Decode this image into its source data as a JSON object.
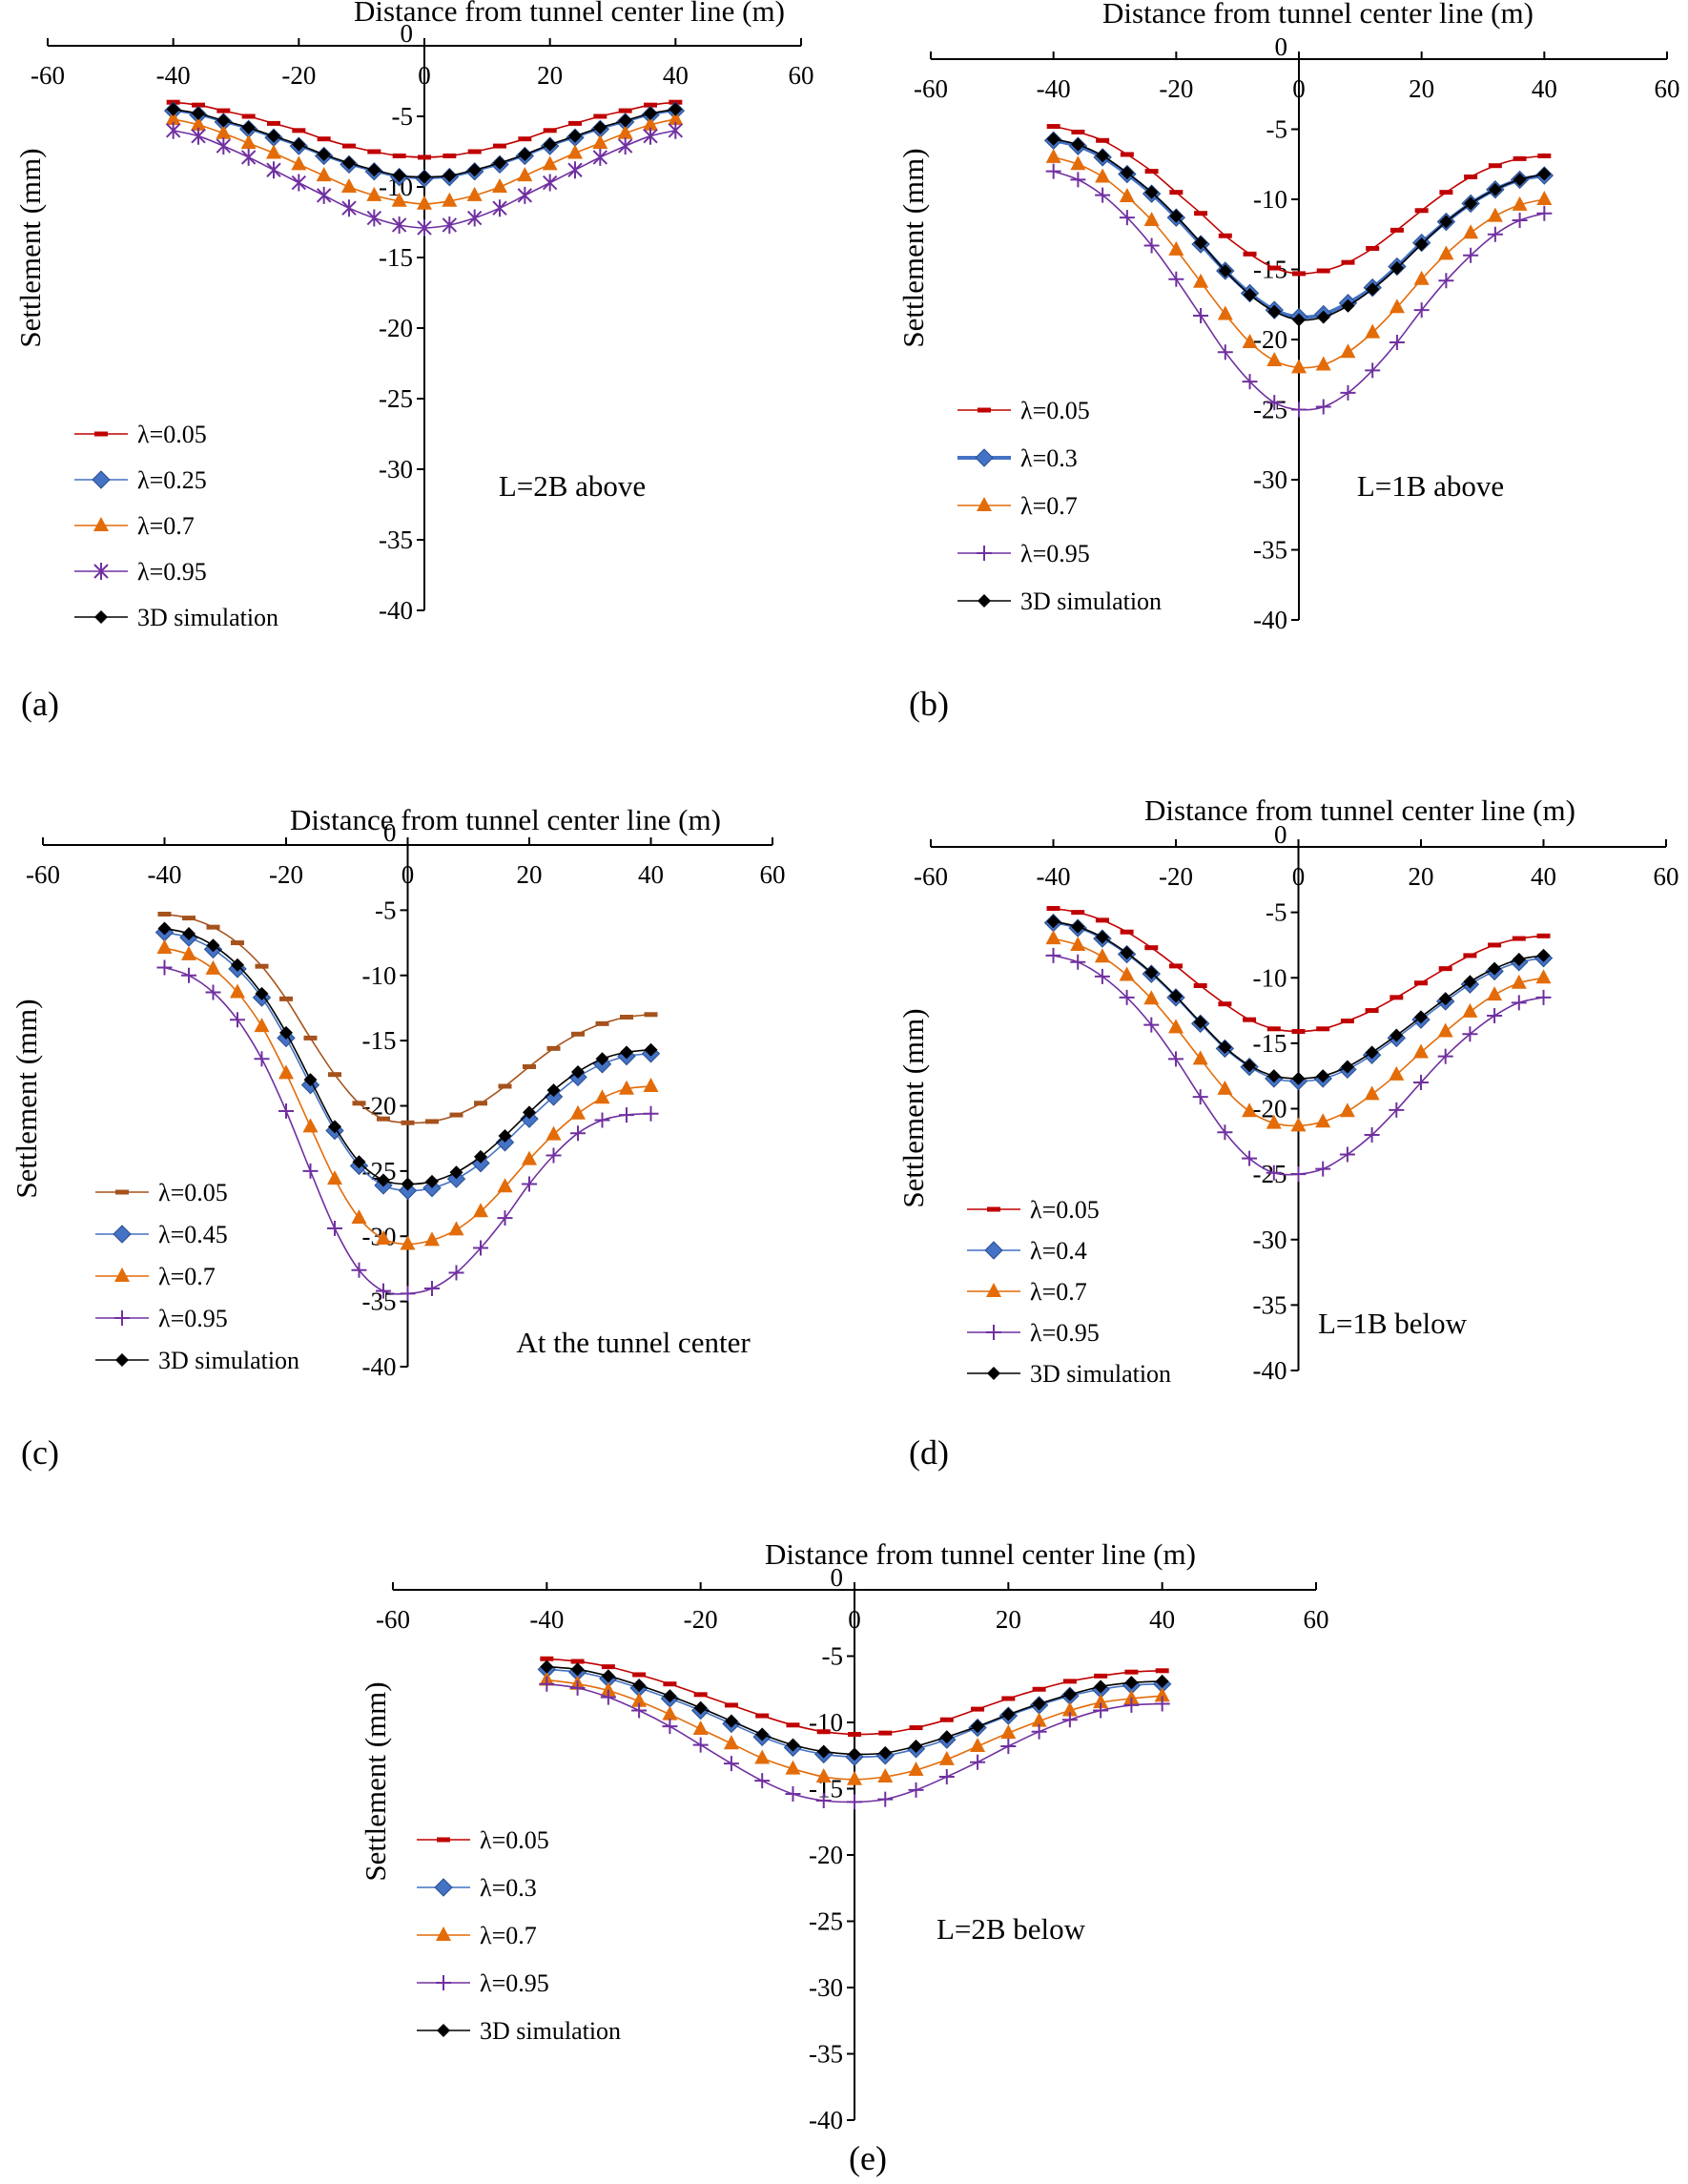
{
  "chart_data": [
    {
      "id": "a",
      "panel_label": "(a)",
      "type": "line",
      "title": "",
      "xlabel": "Distance from tunnel center line (m)",
      "ylabel": "Settlement (mm)",
      "xlim": [
        -60,
        60
      ],
      "ylim": [
        -40,
        0
      ],
      "x_ticks": [
        -60,
        -40,
        -20,
        0,
        20,
        40,
        60
      ],
      "y_ticks": [
        0,
        -5,
        -10,
        -15,
        -20,
        -25,
        -30,
        -35,
        -40
      ],
      "grid": false,
      "annotation": "L=2B above",
      "legend_position": "lower-left",
      "x": [
        -40,
        -36,
        -32,
        -28,
        -24,
        -20,
        -16,
        -12,
        -8,
        -4,
        0,
        4,
        8,
        12,
        16,
        20,
        24,
        28,
        32,
        36,
        40
      ],
      "series": [
        {
          "name": "λ=0.05",
          "color": "#c00000",
          "marker": "dash",
          "values": [
            -4.0,
            -4.2,
            -4.6,
            -5.0,
            -5.5,
            -6.0,
            -6.6,
            -7.1,
            -7.5,
            -7.8,
            -7.9,
            -7.8,
            -7.5,
            -7.1,
            -6.6,
            -6.0,
            -5.5,
            -5.0,
            -4.6,
            -4.2,
            -4.0
          ]
        },
        {
          "name": "λ=0.25",
          "color": "#4472c4",
          "marker": "diamond",
          "values": [
            -4.6,
            -4.9,
            -5.4,
            -5.9,
            -6.5,
            -7.1,
            -7.8,
            -8.4,
            -8.9,
            -9.3,
            -9.4,
            -9.3,
            -8.9,
            -8.4,
            -7.8,
            -7.1,
            -6.5,
            -5.9,
            -5.4,
            -4.9,
            -4.6
          ]
        },
        {
          "name": "λ=0.7",
          "color": "#e36c09",
          "marker": "triangle",
          "values": [
            -5.2,
            -5.6,
            -6.2,
            -6.9,
            -7.6,
            -8.4,
            -9.2,
            -10.0,
            -10.6,
            -11.0,
            -11.2,
            -11.0,
            -10.6,
            -10.0,
            -9.2,
            -8.4,
            -7.6,
            -6.9,
            -6.2,
            -5.6,
            -5.2
          ]
        },
        {
          "name": "λ=0.95",
          "color": "#7030a0",
          "marker": "star",
          "values": [
            -6.0,
            -6.4,
            -7.1,
            -7.9,
            -8.8,
            -9.7,
            -10.6,
            -11.5,
            -12.2,
            -12.7,
            -12.9,
            -12.7,
            -12.2,
            -11.5,
            -10.6,
            -9.7,
            -8.8,
            -7.9,
            -7.1,
            -6.4,
            -6.0
          ]
        },
        {
          "name": "3D simulation",
          "color": "#000000",
          "marker": "diamond-small",
          "values": [
            -4.5,
            -4.8,
            -5.3,
            -5.8,
            -6.4,
            -7.0,
            -7.7,
            -8.3,
            -8.8,
            -9.2,
            -9.3,
            -9.2,
            -8.8,
            -8.3,
            -7.7,
            -7.0,
            -6.4,
            -5.8,
            -5.3,
            -4.8,
            -4.5
          ]
        }
      ]
    },
    {
      "id": "b",
      "panel_label": "(b)",
      "type": "line",
      "title": "",
      "xlabel": "Distance from tunnel center line (m)",
      "ylabel": "Settlement (mm)",
      "xlim": [
        -60,
        60
      ],
      "ylim": [
        -40,
        0
      ],
      "x_ticks": [
        -60,
        -40,
        -20,
        0,
        20,
        40,
        60
      ],
      "y_ticks": [
        0,
        -5,
        -10,
        -15,
        -20,
        -25,
        -30,
        -35,
        -40
      ],
      "grid": false,
      "annotation": "L=1B above",
      "legend_position": "lower-left",
      "x": [
        -40,
        -36,
        -32,
        -28,
        -24,
        -20,
        -16,
        -12,
        -8,
        -4,
        0,
        4,
        8,
        12,
        16,
        20,
        24,
        28,
        32,
        36,
        40
      ],
      "series": [
        {
          "name": "λ=0.05",
          "color": "#c00000",
          "marker": "dash",
          "values": [
            -4.8,
            -5.2,
            -5.8,
            -6.8,
            -8.0,
            -9.5,
            -11.0,
            -12.6,
            -13.9,
            -14.9,
            -15.3,
            -15.1,
            -14.5,
            -13.5,
            -12.2,
            -10.8,
            -9.5,
            -8.4,
            -7.6,
            -7.1,
            -6.9
          ]
        },
        {
          "name": "λ=0.3",
          "color": "#4472c4",
          "marker": "diamond",
          "values": [
            -5.8,
            -6.2,
            -7.0,
            -8.2,
            -9.6,
            -11.3,
            -13.2,
            -15.1,
            -16.7,
            -17.9,
            -18.4,
            -18.2,
            -17.4,
            -16.3,
            -14.8,
            -13.1,
            -11.6,
            -10.3,
            -9.3,
            -8.6,
            -8.3
          ]
        },
        {
          "name": "λ=0.7",
          "color": "#e36c09",
          "marker": "triangle",
          "values": [
            -7.0,
            -7.5,
            -8.4,
            -9.8,
            -11.5,
            -13.6,
            -15.9,
            -18.2,
            -20.2,
            -21.5,
            -22.0,
            -21.8,
            -20.9,
            -19.5,
            -17.7,
            -15.7,
            -13.9,
            -12.4,
            -11.2,
            -10.4,
            -10.0
          ]
        },
        {
          "name": "λ=0.95",
          "color": "#7030a0",
          "marker": "plus",
          "values": [
            -8.0,
            -8.6,
            -9.7,
            -11.3,
            -13.3,
            -15.7,
            -18.3,
            -20.9,
            -23.0,
            -24.5,
            -25.0,
            -24.8,
            -23.8,
            -22.2,
            -20.2,
            -17.9,
            -15.8,
            -14.0,
            -12.5,
            -11.5,
            -11.0
          ]
        },
        {
          "name": "3D simulation",
          "color": "#000000",
          "marker": "diamond-small",
          "values": [
            -5.7,
            -6.1,
            -6.9,
            -8.1,
            -9.5,
            -11.2,
            -13.1,
            -15.1,
            -16.8,
            -18.0,
            -18.6,
            -18.4,
            -17.6,
            -16.4,
            -14.9,
            -13.2,
            -11.6,
            -10.3,
            -9.3,
            -8.6,
            -8.2
          ]
        }
      ]
    },
    {
      "id": "c",
      "panel_label": "(c)",
      "type": "line",
      "title": "",
      "xlabel": "Distance from tunnel center line (m)",
      "ylabel": "Settlement (mm)",
      "xlim": [
        -60,
        60
      ],
      "ylim": [
        -40,
        0
      ],
      "x_ticks": [
        -60,
        -40,
        -20,
        0,
        20,
        40,
        60
      ],
      "y_ticks": [
        0,
        -5,
        -10,
        -15,
        -20,
        -25,
        -30,
        -35,
        -40
      ],
      "grid": false,
      "annotation": "At the tunnel center",
      "legend_position": "lower-left",
      "x": [
        -40,
        -36,
        -32,
        -28,
        -24,
        -20,
        -16,
        -12,
        -8,
        -4,
        0,
        4,
        8,
        12,
        16,
        20,
        24,
        28,
        32,
        36,
        40
      ],
      "series": [
        {
          "name": "λ=0.05",
          "color": "#a5521c",
          "marker": "dash",
          "values": [
            -5.3,
            -5.6,
            -6.3,
            -7.5,
            -9.3,
            -11.8,
            -14.8,
            -17.6,
            -19.8,
            -21.0,
            -21.3,
            -21.2,
            -20.7,
            -19.8,
            -18.5,
            -17.0,
            -15.6,
            -14.5,
            -13.7,
            -13.2,
            -13.0
          ]
        },
        {
          "name": "λ=0.45",
          "color": "#4472c4",
          "marker": "diamond",
          "values": [
            -6.7,
            -7.1,
            -8.0,
            -9.5,
            -11.7,
            -14.8,
            -18.4,
            -21.9,
            -24.6,
            -26.1,
            -26.5,
            -26.3,
            -25.6,
            -24.4,
            -22.8,
            -21.0,
            -19.3,
            -17.8,
            -16.8,
            -16.2,
            -16.0
          ]
        },
        {
          "name": "λ=0.7",
          "color": "#e36c09",
          "marker": "triangle",
          "values": [
            -7.9,
            -8.4,
            -9.5,
            -11.3,
            -13.9,
            -17.5,
            -21.6,
            -25.6,
            -28.6,
            -30.2,
            -30.6,
            -30.3,
            -29.5,
            -28.1,
            -26.2,
            -24.1,
            -22.2,
            -20.6,
            -19.4,
            -18.7,
            -18.5
          ]
        },
        {
          "name": "λ=0.95",
          "color": "#7030a0",
          "marker": "plus",
          "values": [
            -9.4,
            -10.0,
            -11.3,
            -13.4,
            -16.4,
            -20.4,
            -25.0,
            -29.4,
            -32.6,
            -34.2,
            -34.4,
            -34.0,
            -32.8,
            -30.9,
            -28.6,
            -26.0,
            -23.8,
            -22.1,
            -21.1,
            -20.7,
            -20.6
          ]
        },
        {
          "name": "3D simulation",
          "color": "#000000",
          "marker": "diamond-small",
          "values": [
            -6.4,
            -6.8,
            -7.7,
            -9.2,
            -11.4,
            -14.4,
            -18.0,
            -21.6,
            -24.3,
            -25.7,
            -26.0,
            -25.8,
            -25.1,
            -23.9,
            -22.3,
            -20.5,
            -18.8,
            -17.4,
            -16.4,
            -15.9,
            -15.7
          ]
        }
      ]
    },
    {
      "id": "d",
      "panel_label": "(d)",
      "type": "line",
      "title": "",
      "xlabel": "Distance from tunnel center line (m)",
      "ylabel": "Settlement (mm)",
      "xlim": [
        -60,
        60
      ],
      "ylim": [
        -40,
        0
      ],
      "x_ticks": [
        -60,
        -40,
        -20,
        0,
        20,
        40,
        60
      ],
      "y_ticks": [
        0,
        -5,
        -10,
        -15,
        -20,
        -25,
        -30,
        -35,
        -40
      ],
      "grid": false,
      "annotation": "L=1B below",
      "legend_position": "lower-left",
      "x": [
        -40,
        -36,
        -32,
        -28,
        -24,
        -20,
        -16,
        -12,
        -8,
        -4,
        0,
        4,
        8,
        12,
        16,
        20,
        24,
        28,
        32,
        36,
        40
      ],
      "series": [
        {
          "name": "λ=0.05",
          "color": "#c00000",
          "marker": "dash",
          "values": [
            -4.7,
            -5.0,
            -5.6,
            -6.5,
            -7.7,
            -9.1,
            -10.6,
            -12.0,
            -13.2,
            -13.9,
            -14.1,
            -13.9,
            -13.3,
            -12.5,
            -11.5,
            -10.4,
            -9.3,
            -8.3,
            -7.5,
            -7.0,
            -6.8
          ]
        },
        {
          "name": "λ=0.4",
          "color": "#4472c4",
          "marker": "diamond",
          "values": [
            -5.8,
            -6.2,
            -7.0,
            -8.2,
            -9.7,
            -11.5,
            -13.5,
            -15.4,
            -16.8,
            -17.7,
            -17.9,
            -17.7,
            -17.0,
            -15.9,
            -14.6,
            -13.2,
            -11.8,
            -10.5,
            -9.5,
            -8.8,
            -8.5
          ]
        },
        {
          "name": "λ=0.7",
          "color": "#e36c09",
          "marker": "triangle",
          "values": [
            -7.0,
            -7.5,
            -8.4,
            -9.8,
            -11.6,
            -13.8,
            -16.2,
            -18.5,
            -20.2,
            -21.1,
            -21.3,
            -21.0,
            -20.2,
            -18.9,
            -17.4,
            -15.7,
            -14.1,
            -12.6,
            -11.3,
            -10.4,
            -10.0
          ]
        },
        {
          "name": "λ=0.95",
          "color": "#7030a0",
          "marker": "plus",
          "values": [
            -8.3,
            -8.8,
            -9.9,
            -11.5,
            -13.6,
            -16.2,
            -19.1,
            -21.8,
            -23.8,
            -24.9,
            -25.0,
            -24.6,
            -23.5,
            -22.0,
            -20.1,
            -18.0,
            -16.0,
            -14.3,
            -12.9,
            -11.9,
            -11.5
          ]
        },
        {
          "name": "3D simulation",
          "color": "#000000",
          "marker": "diamond-small",
          "values": [
            -5.7,
            -6.1,
            -6.9,
            -8.1,
            -9.6,
            -11.4,
            -13.4,
            -15.3,
            -16.7,
            -17.5,
            -17.7,
            -17.5,
            -16.8,
            -15.7,
            -14.4,
            -13.0,
            -11.6,
            -10.3,
            -9.3,
            -8.6,
            -8.3
          ]
        }
      ]
    },
    {
      "id": "e",
      "panel_label": "(e)",
      "type": "line",
      "title": "",
      "xlabel": "Distance from tunnel center line (m)",
      "ylabel": "Settlement (mm)",
      "xlim": [
        -60,
        60
      ],
      "ylim": [
        -40,
        0
      ],
      "x_ticks": [
        -60,
        -40,
        -20,
        0,
        20,
        40,
        60
      ],
      "y_ticks": [
        0,
        -5,
        -10,
        -15,
        -20,
        -25,
        -30,
        -35,
        -40
      ],
      "grid": false,
      "annotation": "L=2B below",
      "legend_position": "lower-left",
      "x": [
        -40,
        -36,
        -32,
        -28,
        -24,
        -20,
        -16,
        -12,
        -8,
        -4,
        0,
        4,
        8,
        12,
        16,
        20,
        24,
        28,
        32,
        36,
        40
      ],
      "series": [
        {
          "name": "λ=0.05",
          "color": "#c00000",
          "marker": "dash",
          "values": [
            -5.2,
            -5.4,
            -5.8,
            -6.4,
            -7.1,
            -7.9,
            -8.7,
            -9.5,
            -10.2,
            -10.7,
            -10.9,
            -10.8,
            -10.4,
            -9.8,
            -9.0,
            -8.2,
            -7.5,
            -6.9,
            -6.5,
            -6.2,
            -6.1
          ]
        },
        {
          "name": "λ=0.3",
          "color": "#4472c4",
          "marker": "diamond",
          "values": [
            -6.0,
            -6.2,
            -6.7,
            -7.4,
            -8.2,
            -9.1,
            -10.1,
            -11.1,
            -11.9,
            -12.4,
            -12.6,
            -12.5,
            -12.0,
            -11.3,
            -10.4,
            -9.5,
            -8.7,
            -8.0,
            -7.5,
            -7.2,
            -7.1
          ]
        },
        {
          "name": "λ=0.7",
          "color": "#e36c09",
          "marker": "triangle",
          "values": [
            -6.8,
            -7.1,
            -7.6,
            -8.4,
            -9.4,
            -10.5,
            -11.6,
            -12.7,
            -13.5,
            -14.1,
            -14.3,
            -14.1,
            -13.6,
            -12.8,
            -11.8,
            -10.8,
            -9.9,
            -9.1,
            -8.5,
            -8.2,
            -8.0
          ]
        },
        {
          "name": "λ=0.95",
          "color": "#7030a0",
          "marker": "plus",
          "values": [
            -7.1,
            -7.4,
            -8.1,
            -9.1,
            -10.3,
            -11.7,
            -13.1,
            -14.4,
            -15.4,
            -15.9,
            -16.0,
            -15.8,
            -15.1,
            -14.1,
            -13.0,
            -11.8,
            -10.7,
            -9.8,
            -9.1,
            -8.7,
            -8.6
          ]
        },
        {
          "name": "3D simulation",
          "color": "#000000",
          "marker": "diamond-small",
          "values": [
            -5.8,
            -6.0,
            -6.5,
            -7.2,
            -8.0,
            -8.9,
            -9.9,
            -10.9,
            -11.7,
            -12.2,
            -12.4,
            -12.3,
            -11.8,
            -11.1,
            -10.3,
            -9.4,
            -8.6,
            -7.9,
            -7.3,
            -7.0,
            -6.9
          ]
        }
      ]
    }
  ]
}
